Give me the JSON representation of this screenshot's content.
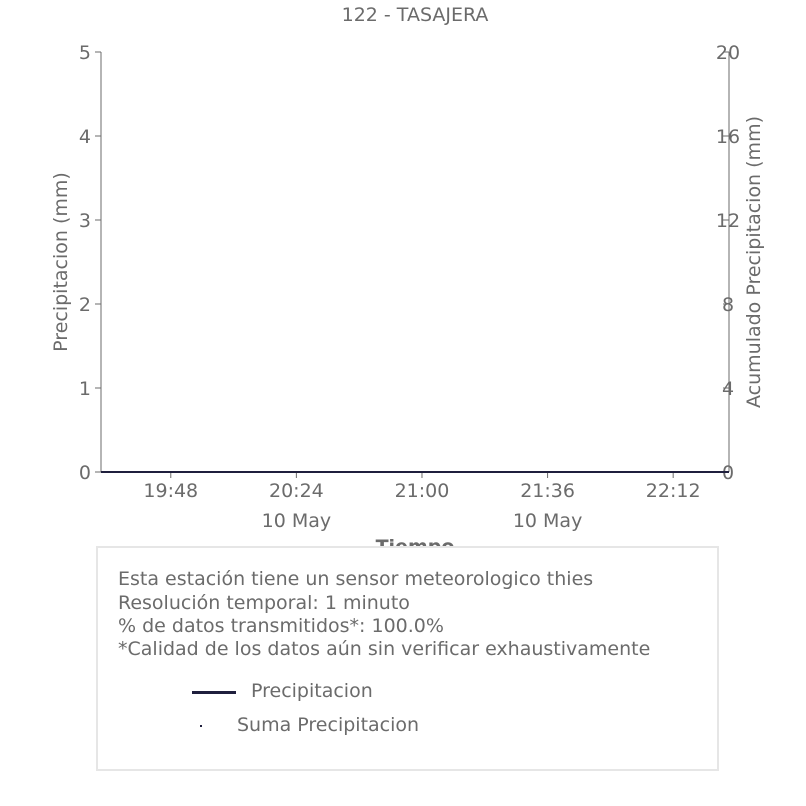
{
  "chart_data": {
    "type": "line",
    "title": "122 - TASAJERA",
    "xlabel": "Tiempo",
    "ylabel": "Precipitacion (mm)",
    "y2label": "Acumulado Precipitacion (mm)",
    "x_ticks": [
      "19:48",
      "20:24",
      "21:00",
      "21:36",
      "22:12"
    ],
    "x_date_labels": [
      {
        "under": "20:24",
        "text": "10 May"
      },
      {
        "under": "21:36",
        "text": "10 May"
      }
    ],
    "ylim": [
      0,
      5
    ],
    "y_ticks": [
      "0",
      "1",
      "2",
      "3",
      "4",
      "5"
    ],
    "y2lim": [
      0,
      20
    ],
    "y2_ticks": [
      "0",
      "4",
      "8",
      "12",
      "16",
      "20"
    ],
    "series": [
      {
        "name": "Precipitacion",
        "style": "line",
        "color": "#1f1f3d",
        "x": [
          "19:28",
          "22:28"
        ],
        "values": [
          0,
          0
        ]
      },
      {
        "name": "Suma Precipitacion",
        "style": "points",
        "color": "#1f1f3d",
        "axis": "right",
        "x": [],
        "values": []
      }
    ],
    "grid": false,
    "legend_placement": "bottom"
  },
  "info": {
    "lines": [
      "Esta estación tiene un sensor meteorologico thies",
      "Resolución temporal: 1 minuto",
      "% de datos transmitidos*: 100.0%",
      "*Calidad de los datos aún sin verificar exhaustivamente"
    ]
  },
  "colors": {
    "text": "#6b6b6b",
    "axis": "#6b6b6b",
    "series": "#1f1f3d",
    "box_border": "#e6e6e6"
  }
}
